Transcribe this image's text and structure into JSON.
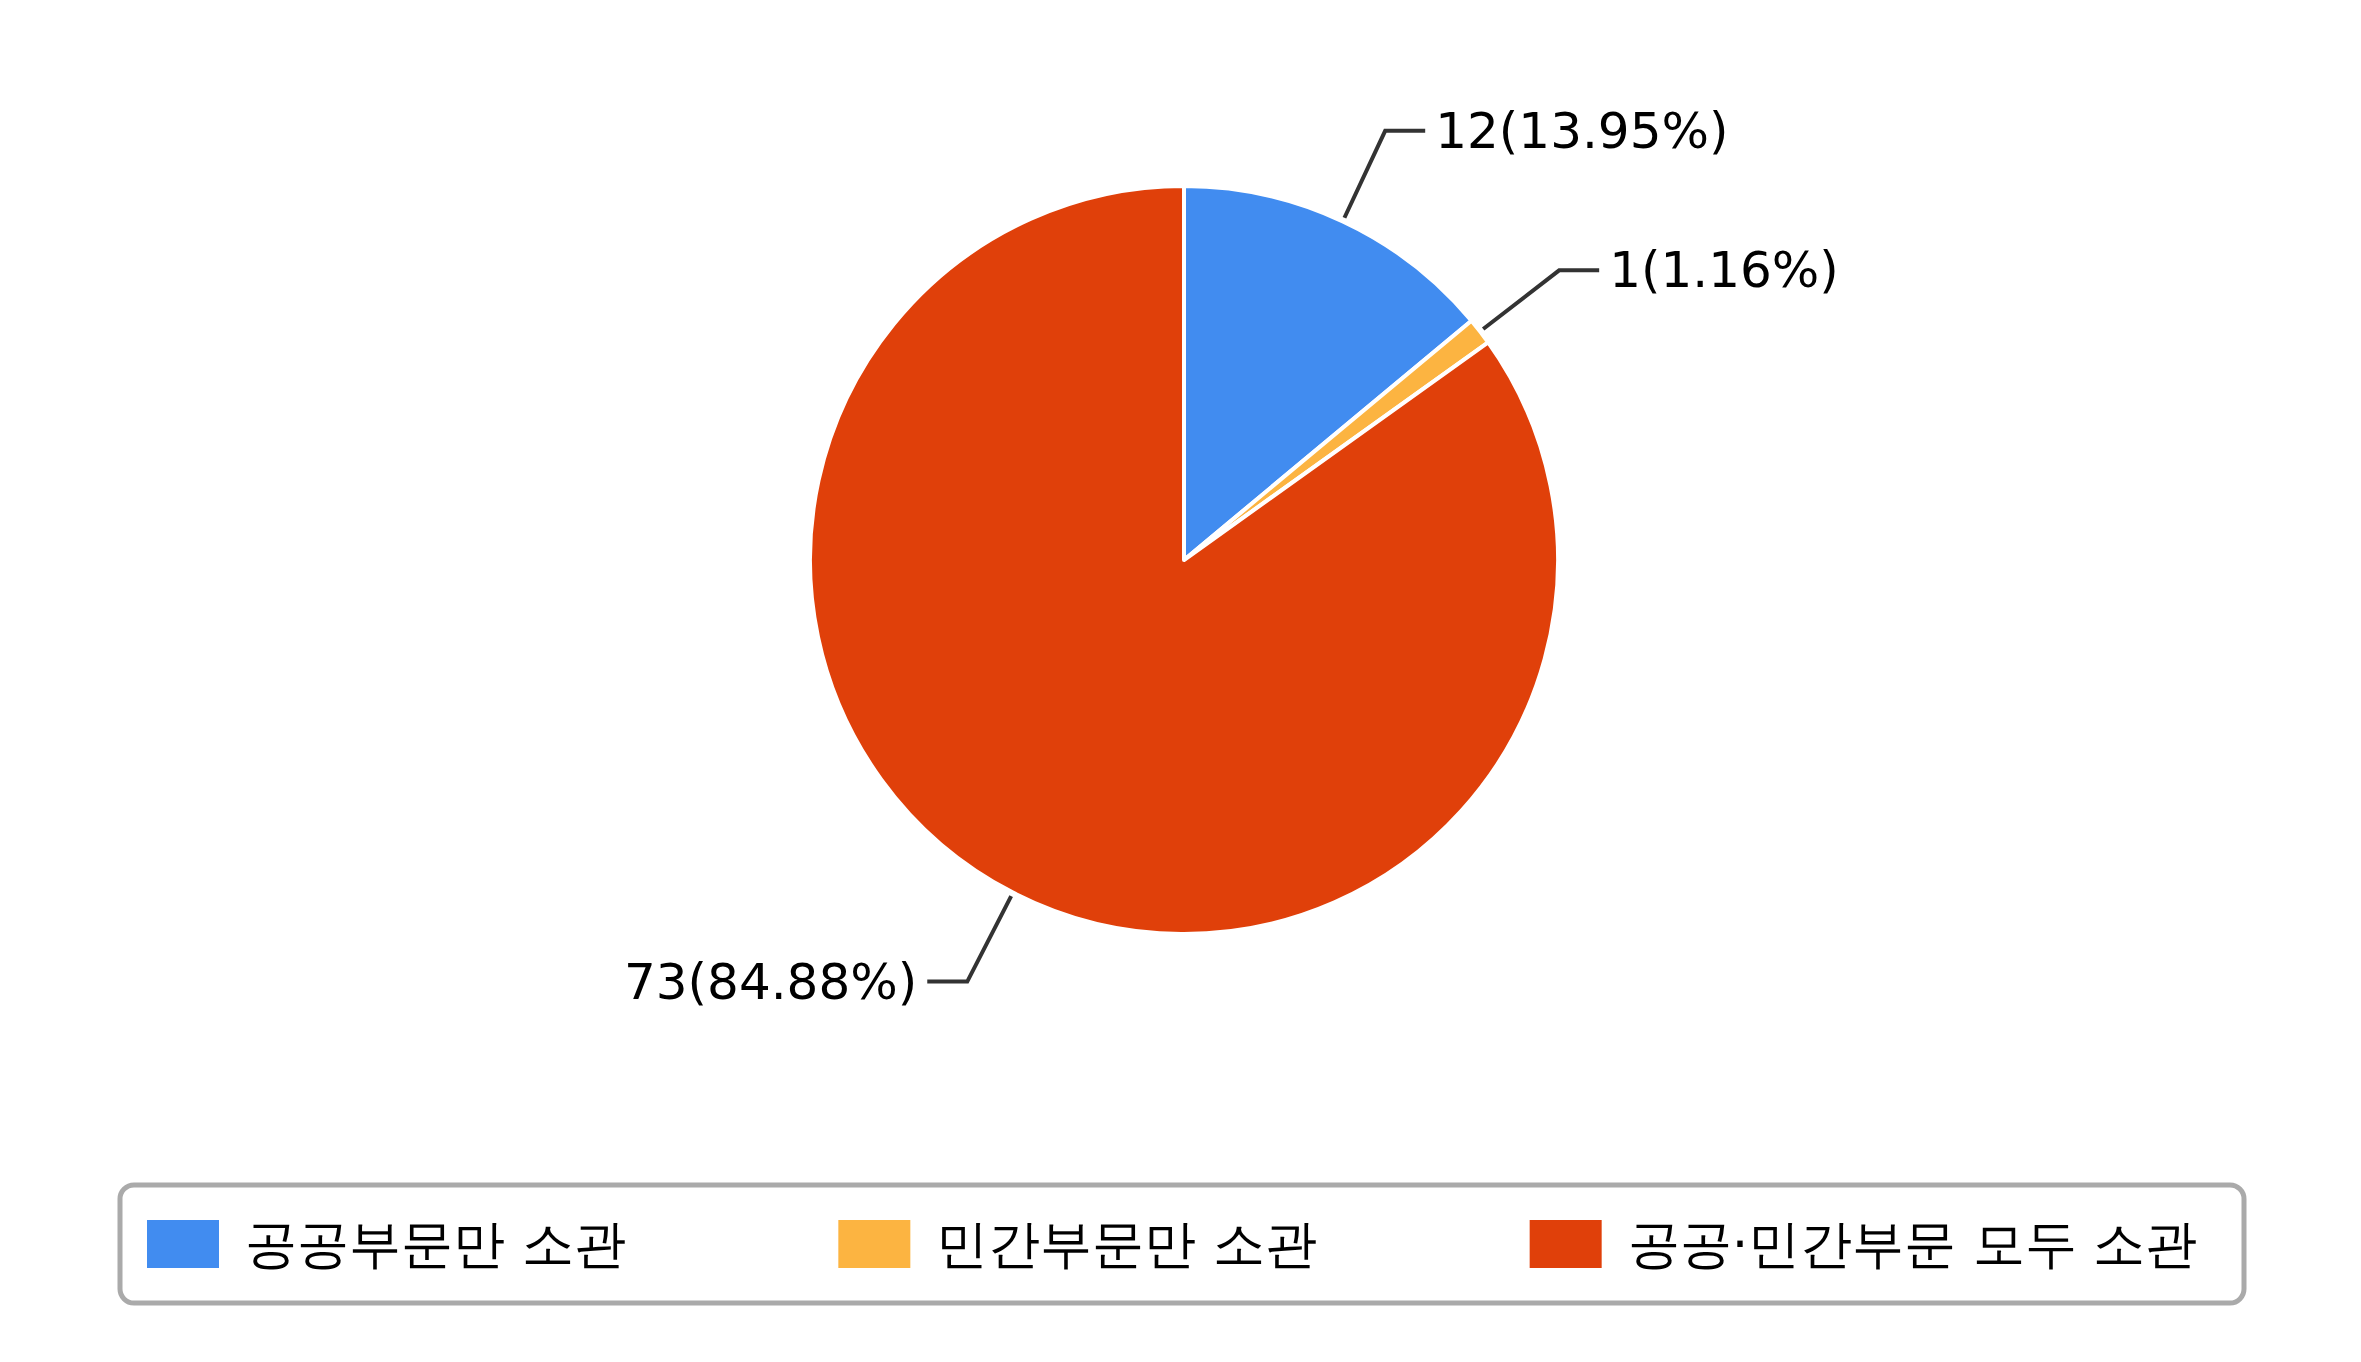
{
  "chart_data": {
    "type": "pie",
    "categories": [
      "공공부문만 소관",
      "민간부문만 소관",
      "공공·민간부문 모두 소관"
    ],
    "values": [
      12,
      1,
      73
    ],
    "colors": [
      "#418cf0",
      "#fcb441",
      "#e0400a"
    ],
    "value_labels": [
      "12(13.95%)",
      "1(1.16%)",
      "73(84.88%)"
    ],
    "legend": "bottom"
  }
}
